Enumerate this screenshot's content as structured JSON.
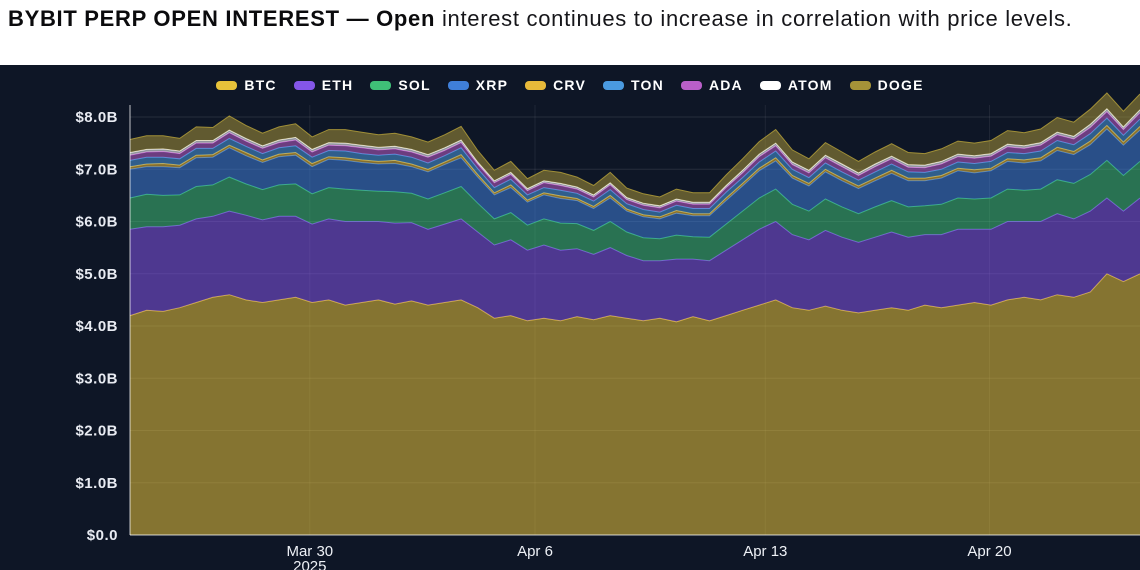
{
  "title": {
    "bold": "BYBIT PERP OPEN INTEREST — Open",
    "regular": " interest continues to increase in correlation with price levels."
  },
  "chart_data": {
    "type": "area",
    "stacked": true,
    "title": "BYBIT PERP OPEN INTEREST",
    "subtitle": "Open interest continues to increase in correlation with price levels.",
    "background": "#0e1626",
    "grid": true,
    "legend_position": "top",
    "ylim": [
      0,
      8.23
    ],
    "y_ticks": [
      "$0.0",
      "$1.0B",
      "$2.0B",
      "$3.0B",
      "$4.0B",
      "$5.0B",
      "$6.0B",
      "$7.0B",
      "$8.0B"
    ],
    "x_ticks": [
      {
        "f": 0.178,
        "label": "Mar 30",
        "sub": "2025"
      },
      {
        "f": 0.401,
        "label": "Apr 6"
      },
      {
        "f": 0.629,
        "label": "Apr 13"
      },
      {
        "f": 0.851,
        "label": "Apr 20"
      }
    ],
    "units": "USD billions",
    "series": [
      {
        "name": "BTC",
        "color": "#e7c23a",
        "values": [
          4.2,
          4.3,
          4.28,
          4.35,
          4.45,
          4.55,
          4.6,
          4.5,
          4.45,
          4.5,
          4.55,
          4.45,
          4.5,
          4.4,
          4.45,
          4.5,
          4.42,
          4.48,
          4.4,
          4.45,
          4.5,
          4.35,
          4.15,
          4.2,
          4.1,
          4.15,
          4.1,
          4.18,
          4.12,
          4.2,
          4.15,
          4.1,
          4.15,
          4.08,
          4.18,
          4.1,
          4.2,
          4.3,
          4.4,
          4.5,
          4.35,
          4.3,
          4.38,
          4.3,
          4.25,
          4.3,
          4.35,
          4.3,
          4.4,
          4.35,
          4.4,
          4.45,
          4.4,
          4.5,
          4.55,
          4.5,
          4.6,
          4.55,
          4.65,
          5.0,
          4.85,
          5.0
        ]
      },
      {
        "name": "ETH",
        "color": "#8456e8",
        "values": [
          1.65,
          1.6,
          1.62,
          1.58,
          1.6,
          1.55,
          1.6,
          1.62,
          1.58,
          1.6,
          1.55,
          1.5,
          1.55,
          1.6,
          1.55,
          1.5,
          1.55,
          1.5,
          1.45,
          1.5,
          1.55,
          1.45,
          1.4,
          1.45,
          1.35,
          1.4,
          1.35,
          1.3,
          1.25,
          1.3,
          1.2,
          1.15,
          1.1,
          1.2,
          1.1,
          1.15,
          1.25,
          1.35,
          1.45,
          1.5,
          1.4,
          1.35,
          1.45,
          1.4,
          1.35,
          1.4,
          1.45,
          1.4,
          1.35,
          1.4,
          1.45,
          1.4,
          1.45,
          1.5,
          1.45,
          1.5,
          1.55,
          1.5,
          1.55,
          1.45,
          1.35,
          1.45
        ]
      },
      {
        "name": "SOL",
        "color": "#3fbf77",
        "values": [
          0.6,
          0.62,
          0.6,
          0.58,
          0.62,
          0.6,
          0.65,
          0.6,
          0.58,
          0.6,
          0.62,
          0.58,
          0.6,
          0.62,
          0.6,
          0.58,
          0.6,
          0.56,
          0.58,
          0.6,
          0.62,
          0.55,
          0.5,
          0.52,
          0.48,
          0.5,
          0.52,
          0.48,
          0.46,
          0.5,
          0.45,
          0.44,
          0.42,
          0.46,
          0.43,
          0.45,
          0.5,
          0.55,
          0.6,
          0.62,
          0.58,
          0.55,
          0.6,
          0.58,
          0.55,
          0.58,
          0.6,
          0.58,
          0.55,
          0.58,
          0.6,
          0.58,
          0.6,
          0.62,
          0.6,
          0.62,
          0.65,
          0.68,
          0.7,
          0.72,
          0.68,
          0.7
        ]
      },
      {
        "name": "XRP",
        "color": "#3f7fd9",
        "values": [
          0.55,
          0.53,
          0.55,
          0.52,
          0.55,
          0.53,
          0.56,
          0.54,
          0.52,
          0.54,
          0.55,
          0.52,
          0.54,
          0.55,
          0.53,
          0.52,
          0.54,
          0.51,
          0.52,
          0.54,
          0.55,
          0.5,
          0.46,
          0.48,
          0.44,
          0.46,
          0.47,
          0.44,
          0.42,
          0.45,
          0.4,
          0.4,
          0.38,
          0.42,
          0.4,
          0.41,
          0.45,
          0.48,
          0.52,
          0.54,
          0.5,
          0.48,
          0.52,
          0.5,
          0.48,
          0.5,
          0.52,
          0.5,
          0.48,
          0.5,
          0.52,
          0.5,
          0.52,
          0.53,
          0.52,
          0.54,
          0.56,
          0.55,
          0.57,
          0.6,
          0.58,
          0.6
        ]
      },
      {
        "name": "CRV",
        "color": "#e7b93a",
        "values": [
          0.05,
          0.05,
          0.06,
          0.05,
          0.05,
          0.05,
          0.05,
          0.06,
          0.05,
          0.05,
          0.05,
          0.06,
          0.05,
          0.05,
          0.05,
          0.05,
          0.06,
          0.05,
          0.05,
          0.05,
          0.06,
          0.05,
          0.04,
          0.05,
          0.04,
          0.04,
          0.05,
          0.04,
          0.04,
          0.05,
          0.04,
          0.04,
          0.04,
          0.05,
          0.04,
          0.04,
          0.05,
          0.05,
          0.05,
          0.06,
          0.05,
          0.05,
          0.05,
          0.05,
          0.05,
          0.05,
          0.06,
          0.05,
          0.05,
          0.05,
          0.05,
          0.06,
          0.05,
          0.05,
          0.06,
          0.06,
          0.06,
          0.06,
          0.07,
          0.07,
          0.06,
          0.07
        ]
      },
      {
        "name": "TON",
        "color": "#4a9ae0",
        "values": [
          0.12,
          0.13,
          0.12,
          0.12,
          0.13,
          0.12,
          0.13,
          0.12,
          0.12,
          0.12,
          0.13,
          0.12,
          0.12,
          0.13,
          0.12,
          0.12,
          0.12,
          0.13,
          0.12,
          0.12,
          0.13,
          0.11,
          0.1,
          0.11,
          0.1,
          0.1,
          0.11,
          0.1,
          0.1,
          0.11,
          0.1,
          0.1,
          0.09,
          0.1,
          0.1,
          0.1,
          0.11,
          0.11,
          0.12,
          0.13,
          0.12,
          0.11,
          0.12,
          0.12,
          0.11,
          0.12,
          0.12,
          0.12,
          0.11,
          0.12,
          0.12,
          0.12,
          0.13,
          0.12,
          0.12,
          0.13,
          0.13,
          0.13,
          0.14,
          0.14,
          0.13,
          0.14
        ]
      },
      {
        "name": "ADA",
        "color": "#b95fc9",
        "values": [
          0.1,
          0.1,
          0.11,
          0.1,
          0.1,
          0.1,
          0.11,
          0.1,
          0.1,
          0.1,
          0.11,
          0.1,
          0.1,
          0.1,
          0.11,
          0.1,
          0.1,
          0.1,
          0.11,
          0.1,
          0.1,
          0.09,
          0.09,
          0.09,
          0.08,
          0.09,
          0.09,
          0.08,
          0.08,
          0.09,
          0.08,
          0.08,
          0.08,
          0.08,
          0.08,
          0.08,
          0.09,
          0.09,
          0.1,
          0.1,
          0.09,
          0.09,
          0.1,
          0.1,
          0.09,
          0.1,
          0.1,
          0.09,
          0.09,
          0.1,
          0.1,
          0.1,
          0.1,
          0.11,
          0.1,
          0.11,
          0.11,
          0.11,
          0.12,
          0.12,
          0.11,
          0.12
        ]
      },
      {
        "name": "ATOM",
        "color": "#ffffff",
        "values": [
          0.05,
          0.05,
          0.05,
          0.05,
          0.05,
          0.05,
          0.05,
          0.05,
          0.05,
          0.05,
          0.05,
          0.05,
          0.05,
          0.05,
          0.05,
          0.05,
          0.05,
          0.05,
          0.05,
          0.05,
          0.05,
          0.04,
          0.04,
          0.04,
          0.04,
          0.04,
          0.04,
          0.04,
          0.04,
          0.04,
          0.04,
          0.04,
          0.04,
          0.04,
          0.04,
          0.04,
          0.04,
          0.05,
          0.05,
          0.05,
          0.05,
          0.05,
          0.05,
          0.05,
          0.05,
          0.05,
          0.05,
          0.05,
          0.05,
          0.05,
          0.05,
          0.05,
          0.05,
          0.05,
          0.05,
          0.05,
          0.05,
          0.05,
          0.06,
          0.06,
          0.05,
          0.06
        ]
      },
      {
        "name": "DOGE",
        "color": "#a59338",
        "values": [
          0.25,
          0.26,
          0.25,
          0.24,
          0.26,
          0.25,
          0.27,
          0.25,
          0.24,
          0.25,
          0.26,
          0.24,
          0.25,
          0.26,
          0.25,
          0.24,
          0.25,
          0.24,
          0.24,
          0.25,
          0.26,
          0.22,
          0.2,
          0.21,
          0.19,
          0.2,
          0.21,
          0.19,
          0.18,
          0.2,
          0.18,
          0.18,
          0.17,
          0.19,
          0.18,
          0.18,
          0.2,
          0.22,
          0.24,
          0.26,
          0.23,
          0.22,
          0.24,
          0.23,
          0.22,
          0.23,
          0.24,
          0.23,
          0.22,
          0.24,
          0.25,
          0.24,
          0.25,
          0.26,
          0.25,
          0.26,
          0.28,
          0.27,
          0.29,
          0.3,
          0.3,
          0.3
        ]
      }
    ]
  }
}
